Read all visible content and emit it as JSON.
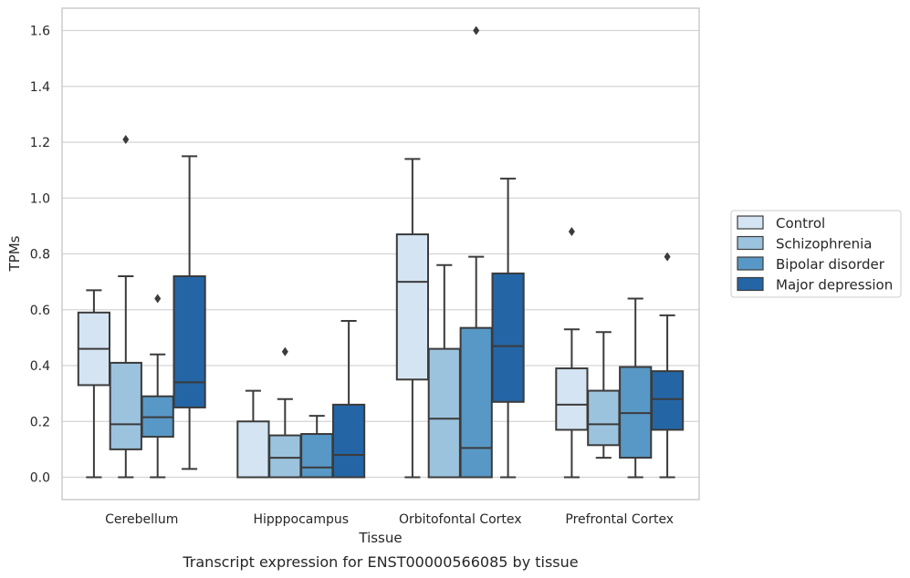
{
  "caption": "Transcript expression for ENST00000566085 by tissue",
  "chart_data": {
    "type": "boxplot",
    "xlabel": "Tissue",
    "ylabel": "TPMs",
    "ylim": [
      -0.08,
      1.68
    ],
    "yticks": [
      "0.0",
      "0.2",
      "0.4",
      "0.6",
      "0.8",
      "1.0",
      "1.2",
      "1.4",
      "1.6"
    ],
    "grid": "horizontal",
    "legend_position": "right",
    "categories": [
      "Cerebellum",
      "Hipppocampus",
      "Orbitofontal Cortex",
      "Prefrontal Cortex"
    ],
    "series": [
      {
        "name": "Control",
        "color": "#d4e4f3",
        "boxes": [
          {
            "whisker_low": 0.0,
            "q1": 0.33,
            "median": 0.46,
            "q3": 0.59,
            "whisker_high": 0.67,
            "outliers": []
          },
          {
            "whisker_low": 0.0,
            "q1": 0.0,
            "median": 0.0,
            "q3": 0.2,
            "whisker_high": 0.31,
            "outliers": []
          },
          {
            "whisker_low": 0.0,
            "q1": 0.35,
            "median": 0.7,
            "q3": 0.87,
            "whisker_high": 1.14,
            "outliers": []
          },
          {
            "whisker_low": 0.0,
            "q1": 0.17,
            "median": 0.26,
            "q3": 0.39,
            "whisker_high": 0.53,
            "outliers": [
              0.88
            ]
          }
        ]
      },
      {
        "name": "Schizophrenia",
        "color": "#9cc3de",
        "boxes": [
          {
            "whisker_low": 0.0,
            "q1": 0.1,
            "median": 0.19,
            "q3": 0.41,
            "whisker_high": 0.72,
            "outliers": [
              1.21
            ]
          },
          {
            "whisker_low": 0.0,
            "q1": 0.0,
            "median": 0.07,
            "q3": 0.15,
            "whisker_high": 0.28,
            "outliers": [
              0.45
            ]
          },
          {
            "whisker_low": 0.0,
            "q1": 0.0,
            "median": 0.21,
            "q3": 0.46,
            "whisker_high": 0.76,
            "outliers": []
          },
          {
            "whisker_low": 0.07,
            "q1": 0.115,
            "median": 0.19,
            "q3": 0.31,
            "whisker_high": 0.52,
            "outliers": []
          }
        ]
      },
      {
        "name": "Bipolar disorder",
        "color": "#5898c6",
        "boxes": [
          {
            "whisker_low": 0.0,
            "q1": 0.145,
            "median": 0.215,
            "q3": 0.29,
            "whisker_high": 0.44,
            "outliers": [
              0.64
            ]
          },
          {
            "whisker_low": 0.0,
            "q1": 0.0,
            "median": 0.035,
            "q3": 0.155,
            "whisker_high": 0.22,
            "outliers": []
          },
          {
            "whisker_low": 0.0,
            "q1": 0.0,
            "median": 0.105,
            "q3": 0.535,
            "whisker_high": 0.79,
            "outliers": [
              1.6
            ]
          },
          {
            "whisker_low": 0.0,
            "q1": 0.07,
            "median": 0.23,
            "q3": 0.395,
            "whisker_high": 0.64,
            "outliers": []
          }
        ]
      },
      {
        "name": "Major depression",
        "color": "#2465a6",
        "boxes": [
          {
            "whisker_low": 0.03,
            "q1": 0.25,
            "median": 0.34,
            "q3": 0.72,
            "whisker_high": 1.15,
            "outliers": []
          },
          {
            "whisker_low": 0.0,
            "q1": 0.0,
            "median": 0.08,
            "q3": 0.26,
            "whisker_high": 0.56,
            "outliers": []
          },
          {
            "whisker_low": 0.0,
            "q1": 0.27,
            "median": 0.47,
            "q3": 0.73,
            "whisker_high": 1.07,
            "outliers": []
          },
          {
            "whisker_low": 0.0,
            "q1": 0.17,
            "median": 0.28,
            "q3": 0.38,
            "whisker_high": 0.58,
            "outliers": [
              0.79
            ]
          }
        ]
      }
    ]
  }
}
